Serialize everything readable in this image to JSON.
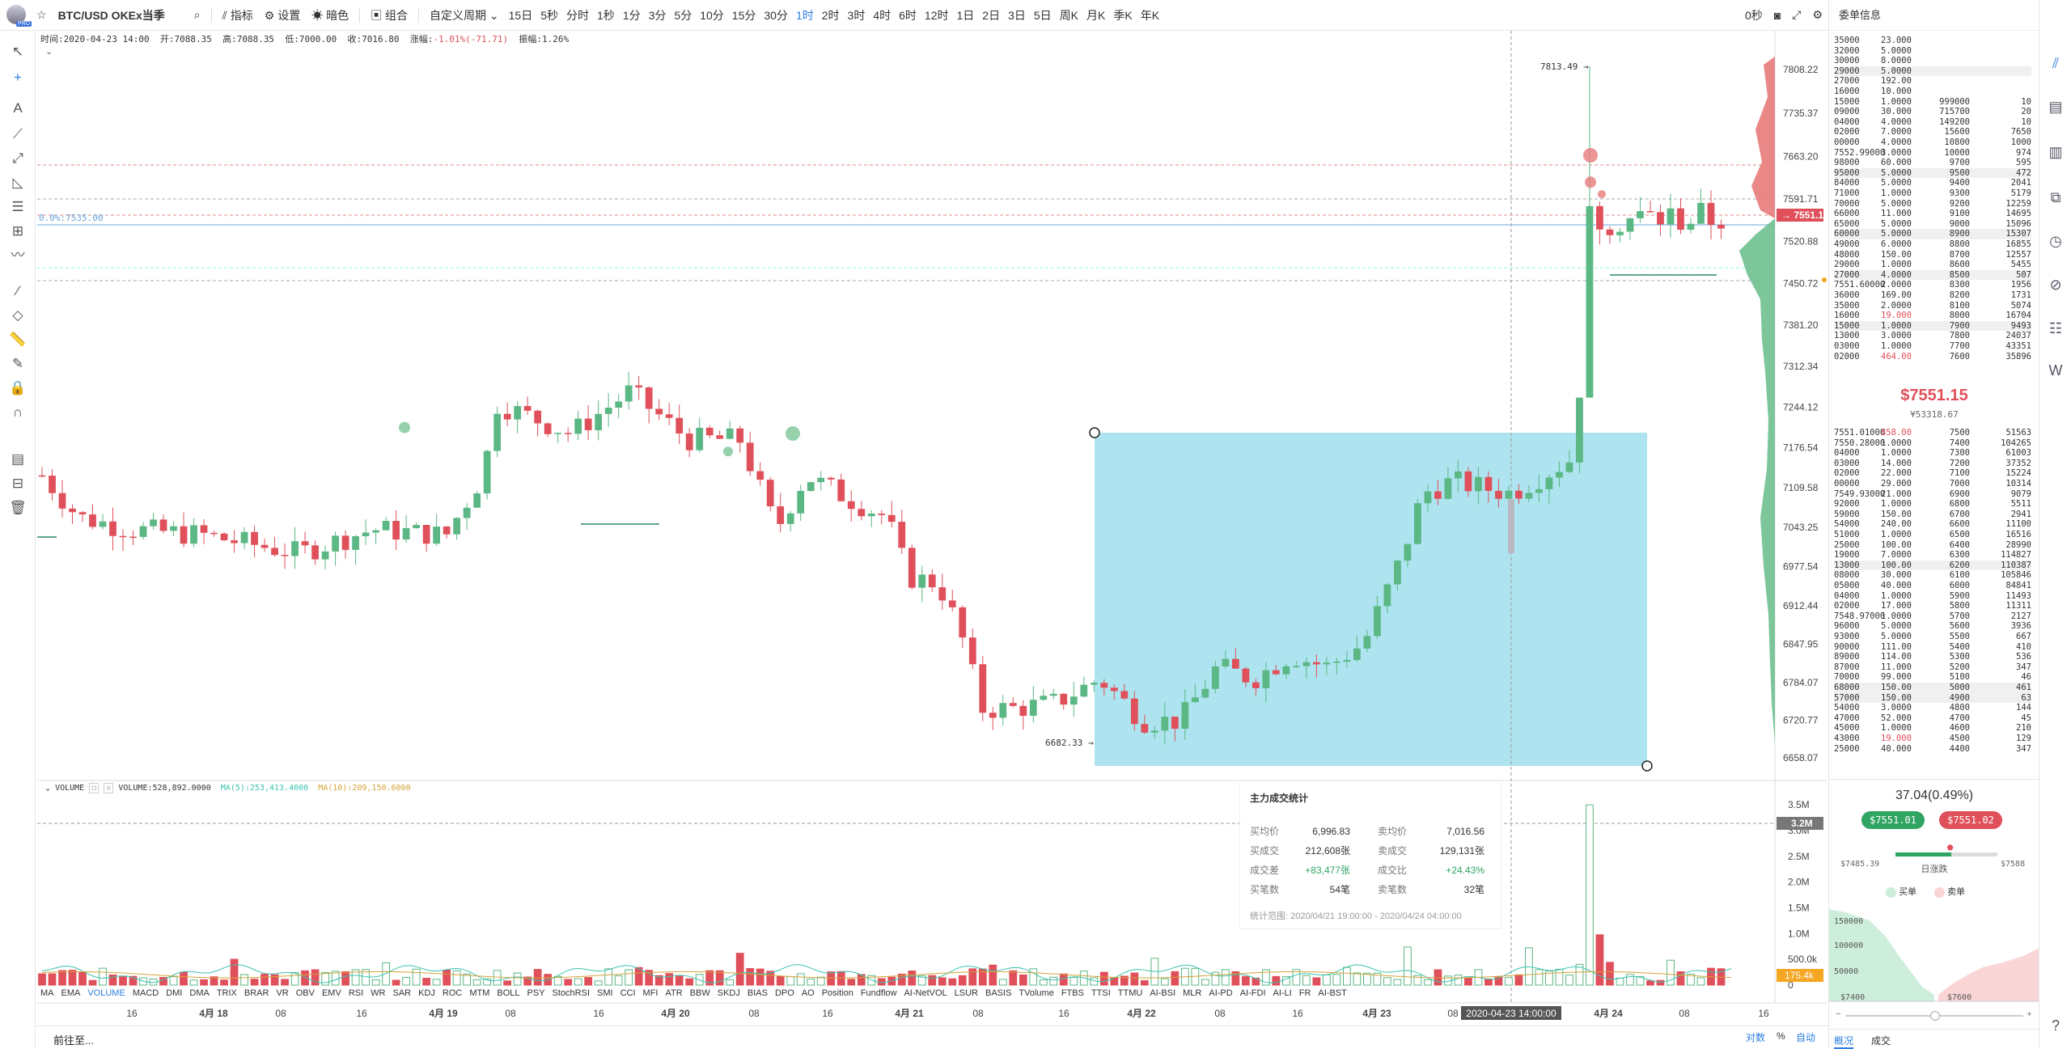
{
  "toolbar": {
    "symbol": "BTC/USD OKEx当季",
    "indicators": "指标",
    "settings": "设置",
    "theme": "暗色",
    "combo": "组合",
    "custom_period": "自定义周期",
    "periods": [
      "15日",
      "5秒",
      "分时",
      "1秒",
      "1分",
      "3分",
      "5分",
      "10分",
      "15分",
      "30分",
      "1时",
      "2时",
      "3时",
      "4时",
      "6时",
      "12时",
      "1日",
      "2日",
      "3日",
      "5日",
      "周K",
      "月K",
      "季K",
      "年K"
    ],
    "active_period": "1时",
    "countdown": "0秒"
  },
  "ohlc_info": {
    "time": "时间:2020-04-23 14:00",
    "open": "开:7088.35",
    "high": "高:7088.35",
    "low": "低:7000.00",
    "close": "收:7016.80",
    "change_label": "涨幅:",
    "change_value": "-1.01%(-71.71)",
    "amp": "振幅:1.26%"
  },
  "chart_labels": {
    "fib_label": "0.0%:7535.00",
    "high_marker": "7813.49",
    "low_marker": "6682.33",
    "price_tag": "7551.15",
    "crosshair_time": "2020-04-23 14:00:00",
    "volume_tag": "3.2M",
    "volume_last_tag": "175.4k"
  },
  "price_axis": [
    "7808.22",
    "7735.37",
    "7663.20",
    "7591.71",
    "7520.88",
    "7450.72",
    "7381.20",
    "7312.34",
    "7244.12",
    "7176.54",
    "7109.58",
    "7043.25",
    "6977.54",
    "6912.44",
    "6847.95",
    "6784.07",
    "6720.77",
    "6658.07"
  ],
  "volume_axis": [
    "3.5M",
    "3.0M",
    "2.5M",
    "2.0M",
    "1.5M",
    "1.0M",
    "500.0k",
    "0"
  ],
  "time_axis": [
    "16",
    "4月 18",
    "08",
    "16",
    "4月 19",
    "08",
    "16",
    "4月 20",
    "08",
    "16",
    "4月 21",
    "08",
    "16",
    "4月 22",
    "08",
    "16",
    "4月 23",
    "08",
    "4月 24",
    "08",
    "16"
  ],
  "volume_legend": {
    "name": "VOLUME",
    "value": "VOLUME:528,892.0000",
    "ma5": "MA(5):253,413.4000",
    "ma10": "MA(10):209,150.6000"
  },
  "indicators": [
    "MA",
    "EMA",
    "VOLUME",
    "MACD",
    "DMI",
    "DMA",
    "TRIX",
    "BRAR",
    "VR",
    "OBV",
    "EMV",
    "RSI",
    "WR",
    "SAR",
    "KDJ",
    "ROC",
    "MTM",
    "BOLL",
    "PSY",
    "StochRSI",
    "SMI",
    "CCI",
    "MFI",
    "ATR",
    "BBW",
    "SKDJ",
    "BIAS",
    "DPO",
    "AO",
    "Position",
    "Fundflow",
    "AI-NetVOL",
    "LSUR",
    "BASIS",
    "TVolume",
    "FTBS",
    "TTSI",
    "TTMU",
    "AI-BSI",
    "MLR",
    "AI-PD",
    "AI-FDI",
    "AI-LI",
    "FR",
    "AI-BST"
  ],
  "active_indicator": "VOLUME",
  "stats_panel": {
    "title": "主力成交统计",
    "rows": [
      {
        "l1": "买均价",
        "v1": "6,996.83",
        "l2": "卖均价",
        "v2": "7,016.56"
      },
      {
        "l1": "买成交",
        "v1": "212,608张",
        "l2": "卖成交",
        "v2": "129,131张"
      },
      {
        "l1": "成交差",
        "v1": "+83,477张",
        "l2": "成交比",
        "v2": "+24.43%"
      },
      {
        "l1": "买笔数",
        "v1": "54笔",
        "l2": "卖笔数",
        "v2": "32笔"
      }
    ],
    "range": "统计范围: 2020/04/21 19:00:00 - 2020/04/24 04:00:00"
  },
  "bottom": {
    "goto": "前往至...",
    "log": "对数",
    "percent": "%",
    "auto": "自动"
  },
  "order_book": {
    "title": "委单信息",
    "asks": [
      [
        "35000",
        "23.000",
        "",
        ""
      ],
      [
        "32000",
        "5.0000",
        "",
        ""
      ],
      [
        "30000",
        "8.0000",
        "",
        ""
      ],
      [
        "29000",
        "5.0000",
        "",
        ""
      ],
      [
        "27000",
        "192.00",
        "",
        ""
      ],
      [
        "16000",
        "10.000",
        "",
        ""
      ],
      [
        "15000",
        "1.0000",
        "999000",
        "10"
      ],
      [
        "09000",
        "30.000",
        "715700",
        "20"
      ],
      [
        "04000",
        "4.0000",
        "149200",
        "10"
      ],
      [
        "02000",
        "7.0000",
        "15600",
        "7650"
      ],
      [
        "00000",
        "4.0000",
        "10800",
        "1000"
      ],
      [
        "7552.99000",
        "3.0000",
        "10000",
        "974"
      ],
      [
        "98000",
        "60.000",
        "9700",
        "595"
      ],
      [
        "95000",
        "5.0000",
        "9500",
        "472"
      ],
      [
        "84000",
        "5.0000",
        "9400",
        "2041"
      ],
      [
        "71000",
        "1.0000",
        "9300",
        "5179"
      ],
      [
        "70000",
        "5.0000",
        "9200",
        "12259"
      ],
      [
        "66000",
        "11.000",
        "9100",
        "14695"
      ],
      [
        "65000",
        "5.0000",
        "9000",
        "15096"
      ],
      [
        "60000",
        "5.0000",
        "8900",
        "15307"
      ],
      [
        "49000",
        "6.0000",
        "8800",
        "16855"
      ],
      [
        "48000",
        "150.00",
        "8700",
        "12557"
      ],
      [
        "29000",
        "1.0000",
        "8600",
        "5455"
      ],
      [
        "27000",
        "4.0000",
        "8500",
        "507"
      ],
      [
        "7551.60000",
        "2.0000",
        "8300",
        "1956"
      ],
      [
        "36000",
        "169.00",
        "8200",
        "1731"
      ],
      [
        "35000",
        "2.0000",
        "8100",
        "5074"
      ],
      [
        "16000",
        "19.000",
        "8000",
        "16704"
      ],
      [
        "15000",
        "1.0000",
        "7900",
        "9493"
      ],
      [
        "13000",
        "3.0000",
        "7800",
        "24037"
      ],
      [
        "03000",
        "1.0000",
        "7700",
        "43351"
      ],
      [
        "02000",
        "464.00",
        "7600",
        "35896"
      ]
    ],
    "last_price": "$7551.15",
    "last_price_cny": "¥53318.67",
    "bids": [
      [
        "7551.01000",
        "858.00",
        "7500",
        "51563"
      ],
      [
        "7550.28000",
        "1.0000",
        "7400",
        "104265"
      ],
      [
        "04000",
        "1.0000",
        "7300",
        "61003"
      ],
      [
        "03000",
        "14.000",
        "7200",
        "37352"
      ],
      [
        "02000",
        "22.000",
        "7100",
        "15224"
      ],
      [
        "00000",
        "29.000",
        "7000",
        "10314"
      ],
      [
        "7549.93000",
        "21.000",
        "6900",
        "9079"
      ],
      [
        "92000",
        "1.0000",
        "6800",
        "5511"
      ],
      [
        "59000",
        "150.00",
        "6700",
        "2941"
      ],
      [
        "54000",
        "240.00",
        "6600",
        "11100"
      ],
      [
        "51000",
        "1.0000",
        "6500",
        "16516"
      ],
      [
        "25000",
        "100.00",
        "6400",
        "28990"
      ],
      [
        "19000",
        "7.0000",
        "6300",
        "114827"
      ],
      [
        "13000",
        "100.00",
        "6200",
        "110387"
      ],
      [
        "08000",
        "30.000",
        "6100",
        "105846"
      ],
      [
        "05000",
        "40.000",
        "6000",
        "84841"
      ],
      [
        "04000",
        "1.0000",
        "5900",
        "11493"
      ],
      [
        "02000",
        "17.000",
        "5800",
        "11311"
      ],
      [
        "7548.97000",
        "1.0000",
        "5700",
        "2127"
      ],
      [
        "96000",
        "5.0000",
        "5600",
        "3936"
      ],
      [
        "93000",
        "5.0000",
        "5500",
        "667"
      ],
      [
        "90000",
        "111.00",
        "5400",
        "410"
      ],
      [
        "89000",
        "114.00",
        "5300",
        "536"
      ],
      [
        "87000",
        "11.000",
        "5200",
        "347"
      ],
      [
        "70000",
        "99.000",
        "5100",
        "46"
      ],
      [
        "68000",
        "150.00",
        "5000",
        "461"
      ],
      [
        "57000",
        "150.00",
        "4900",
        "63"
      ],
      [
        "54000",
        "3.0000",
        "4800",
        "144"
      ],
      [
        "47000",
        "52.000",
        "4700",
        "45"
      ],
      [
        "45000",
        "1.0000",
        "4600",
        "210"
      ],
      [
        "43000",
        "19.000",
        "4500",
        "129"
      ],
      [
        "25000",
        "40.000",
        "4400",
        "347"
      ]
    ],
    "change_pct": "37.04(0.49%)",
    "bid_best": "$7551.01",
    "ask_best": "$7551.02",
    "day_low": "$7485.39",
    "day_range_label": "日涨跌",
    "day_high": "$7588",
    "legend_buy": "买单",
    "legend_sell": "卖单",
    "depth_y": [
      "150000",
      "100000",
      "50000"
    ],
    "depth_x": [
      "$7400",
      "$7600"
    ],
    "tabs": [
      "概况",
      "成交"
    ]
  },
  "colors": {
    "up": "#5bb784",
    "down": "#e0505a",
    "rect": "#a9e3ee",
    "accent": "#2a7de1"
  }
}
